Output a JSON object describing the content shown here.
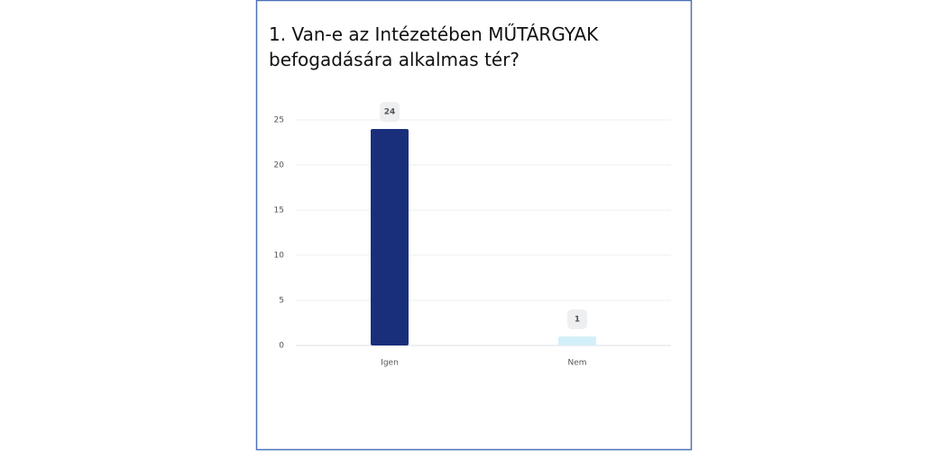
{
  "chart_data": {
    "type": "bar",
    "title": "1. Van-e az Intézetében MŰTÁRGYAK befogadására alkalmas tér?",
    "categories": [
      "Igen",
      "Nem"
    ],
    "values": [
      24,
      1
    ],
    "colors": [
      "#1a2f7c",
      "#d3f0fa"
    ],
    "ylim": [
      0,
      25
    ],
    "yticks": [
      0,
      5,
      10,
      15,
      20,
      25
    ],
    "grid": true
  }
}
